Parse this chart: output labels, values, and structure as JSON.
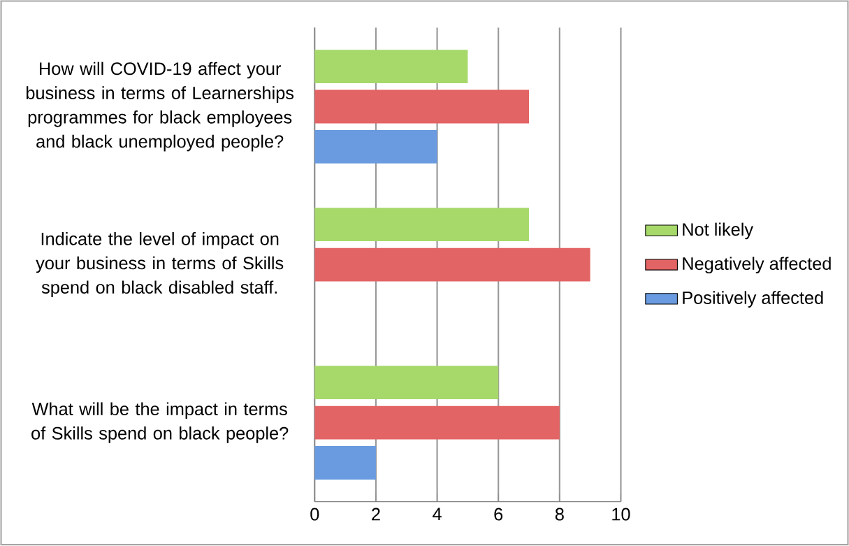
{
  "chart_data": {
    "type": "bar",
    "orientation": "horizontal",
    "categories": [
      "How will COVID-19 affect your business in terms of Learnerships programmes for black employees and black unemployed people?",
      "Indicate the level of impact on your business in terms of Skills spend on black disabled staff.",
      "What will be the impact in terms of Skills spend on black people?"
    ],
    "series": [
      {
        "name": "Not likely",
        "color": "#a6d96a",
        "values": [
          5,
          7,
          6
        ]
      },
      {
        "name": "Negatively affected",
        "color": "#e36464",
        "values": [
          7,
          9,
          8
        ]
      },
      {
        "name": "Positively affected",
        "color": "#6a9be0",
        "values": [
          4,
          0,
          2
        ]
      }
    ],
    "xlim": [
      0,
      10
    ],
    "xticks": [
      0,
      2,
      4,
      6,
      8,
      10
    ],
    "grid": "x",
    "legend": "right"
  }
}
